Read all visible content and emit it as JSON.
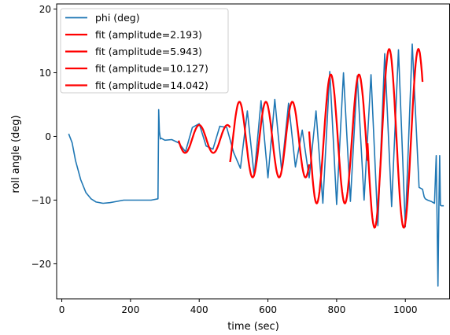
{
  "chart_data": {
    "type": "line",
    "title": "",
    "xlabel": "time (sec)",
    "ylabel": "roll angle (deg)",
    "xlim": [
      -15,
      1130
    ],
    "ylim": [
      -25.5,
      20.8
    ],
    "xticks": [
      0,
      200,
      400,
      600,
      800,
      1000
    ],
    "yticks": [
      -20,
      -10,
      0,
      10,
      20
    ],
    "xtick_labels": [
      "0",
      "200",
      "400",
      "600",
      "800",
      "1000"
    ],
    "ytick_labels": [
      "−20",
      "−10",
      "0",
      "10",
      "20"
    ],
    "grid": false,
    "legend_position": "top-left",
    "series": [
      {
        "name": "phi (deg)",
        "color": "#1f77b4",
        "x": [
          20,
          30,
          40,
          55,
          70,
          85,
          100,
          120,
          140,
          160,
          180,
          200,
          230,
          260,
          280,
          282,
          284,
          287,
          290,
          300,
          320,
          340,
          360,
          380,
          400,
          420,
          440,
          460,
          480,
          500,
          520,
          540,
          560,
          580,
          600,
          620,
          640,
          660,
          680,
          700,
          720,
          740,
          760,
          780,
          800,
          820,
          840,
          860,
          880,
          900,
          920,
          940,
          960,
          980,
          1000,
          1020,
          1040,
          1050,
          1055,
          1058,
          1065,
          1075,
          1085,
          1090,
          1095,
          1098,
          1100,
          1102,
          1105,
          1108,
          1112
        ],
        "y": [
          0.4,
          -1.0,
          -3.8,
          -6.8,
          -8.8,
          -9.8,
          -10.3,
          -10.5,
          -10.4,
          -10.2,
          -10.0,
          -10.0,
          -10.0,
          -10.0,
          -9.8,
          4.2,
          0.8,
          -0.4,
          -0.3,
          -0.6,
          -0.5,
          -1.0,
          -2.4,
          1.4,
          2.0,
          -1.5,
          -2.0,
          1.6,
          1.4,
          -2.5,
          -5.0,
          4.0,
          -6.2,
          5.6,
          -6.5,
          5.8,
          -5.4,
          5.2,
          -4.8,
          1.0,
          -6.5,
          4.0,
          -10.5,
          10.2,
          -10.7,
          10.0,
          -10.2,
          9.5,
          -10.0,
          9.7,
          -14.0,
          13.0,
          -11.0,
          13.6,
          -14.2,
          14.5,
          -8.0,
          -8.3,
          -9.5,
          -9.8,
          -10.0,
          -10.2,
          -10.5,
          -3.0,
          -23.5,
          -10.0,
          -3.0,
          -10.8,
          -10.9,
          -10.9,
          -10.9
        ]
      },
      {
        "name": "fit (amplitude=2.193)",
        "color": "#ff0000",
        "segment": [
          340,
          490
        ],
        "amplitude": 2.193,
        "center": -0.4,
        "period": 82,
        "phase_t": 400
      },
      {
        "name": "fit (amplitude=5.943)",
        "color": "#ff0000",
        "segment": [
          490,
          720
        ],
        "amplitude": 5.943,
        "center": -0.5,
        "period": 77,
        "phase_t": 594
      },
      {
        "name": "fit (amplitude=10.127)",
        "color": "#ff0000",
        "segment": [
          720,
          890
        ],
        "amplitude": 10.127,
        "center": -0.4,
        "period": 82,
        "phase_t": 783
      },
      {
        "name": "fit (amplitude=14.042)",
        "color": "#ff0000",
        "segment": [
          890,
          1050
        ],
        "amplitude": 14.042,
        "center": -0.3,
        "period": 85,
        "phase_t": 953
      }
    ]
  }
}
